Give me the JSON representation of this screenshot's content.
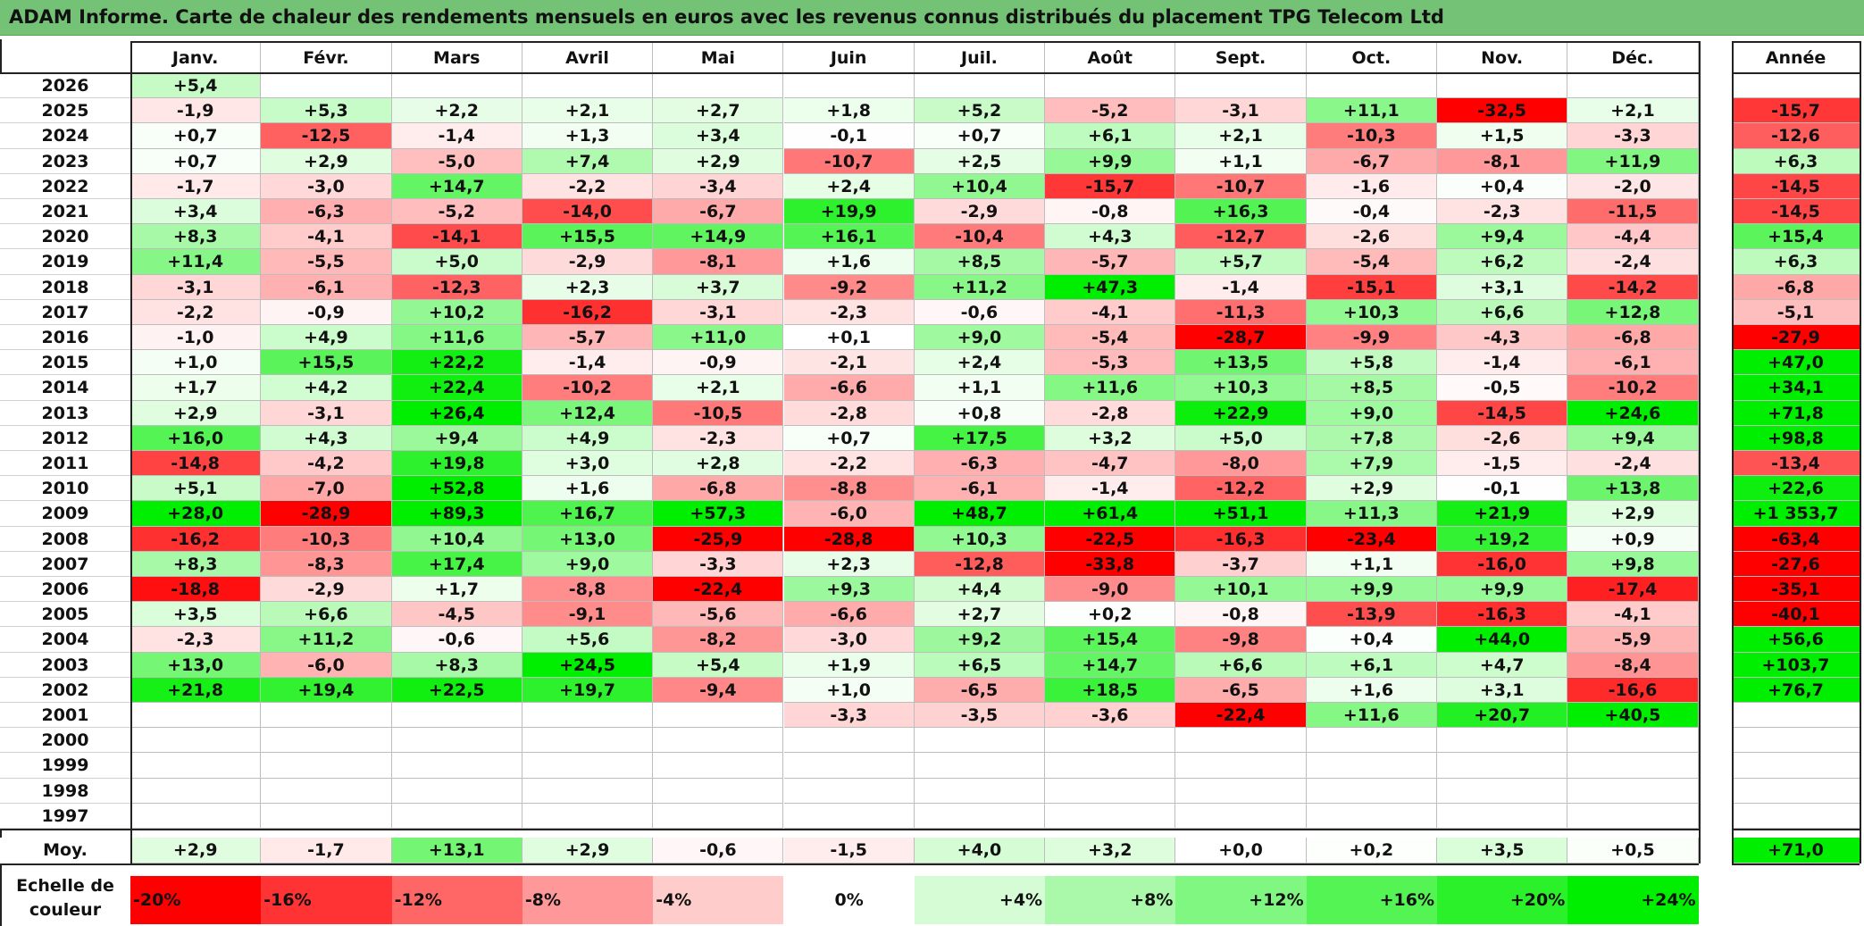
{
  "title": "ADAM Informe. Carte de chaleur des rendements mensuels en euros avec les revenus connus distribués du placement TPG Telecom Ltd",
  "chart_data": {
    "type": "heatmap",
    "title": "ADAM Informe. Carte de chaleur des rendements mensuels en euros avec les revenus connus distribués du placement TPG Telecom Ltd",
    "months": [
      "Janv.",
      "Févr.",
      "Mars",
      "Avril",
      "Mai",
      "Juin",
      "Juil.",
      "Août",
      "Sept.",
      "Oct.",
      "Nov.",
      "Déc."
    ],
    "year_header": "Année",
    "rows": [
      {
        "year": "2026",
        "values": [
          "+5,4",
          "",
          "",
          "",
          "",
          "",
          "",
          "",
          "",
          "",
          "",
          ""
        ],
        "annual": ""
      },
      {
        "year": "2025",
        "values": [
          "-1,9",
          "+5,3",
          "+2,2",
          "+2,1",
          "+2,7",
          "+1,8",
          "+5,2",
          "-5,2",
          "-3,1",
          "+11,1",
          "-32,5",
          "+2,1"
        ],
        "annual": "-15,7"
      },
      {
        "year": "2024",
        "values": [
          "+0,7",
          "-12,5",
          "-1,4",
          "+1,3",
          "+3,4",
          "-0,1",
          "+0,7",
          "+6,1",
          "+2,1",
          "-10,3",
          "+1,5",
          "-3,3"
        ],
        "annual": "-12,6"
      },
      {
        "year": "2023",
        "values": [
          "+0,7",
          "+2,9",
          "-5,0",
          "+7,4",
          "+2,9",
          "-10,7",
          "+2,5",
          "+9,9",
          "+1,1",
          "-6,7",
          "-8,1",
          "+11,9"
        ],
        "annual": "+6,3"
      },
      {
        "year": "2022",
        "values": [
          "-1,7",
          "-3,0",
          "+14,7",
          "-2,2",
          "-3,4",
          "+2,4",
          "+10,4",
          "-15,7",
          "-10,7",
          "-1,6",
          "+0,4",
          "-2,0"
        ],
        "annual": "-14,5"
      },
      {
        "year": "2021",
        "values": [
          "+3,4",
          "-6,3",
          "-5,2",
          "-14,0",
          "-6,7",
          "+19,9",
          "-2,9",
          "-0,8",
          "+16,3",
          "-0,4",
          "-2,3",
          "-11,5"
        ],
        "annual": "-14,5"
      },
      {
        "year": "2020",
        "values": [
          "+8,3",
          "-4,1",
          "-14,1",
          "+15,5",
          "+14,9",
          "+16,1",
          "-10,4",
          "+4,3",
          "-12,7",
          "-2,6",
          "+9,4",
          "-4,4"
        ],
        "annual": "+15,4"
      },
      {
        "year": "2019",
        "values": [
          "+11,4",
          "-5,5",
          "+5,0",
          "-2,9",
          "-8,1",
          "+1,6",
          "+8,5",
          "-5,7",
          "+5,7",
          "-5,4",
          "+6,2",
          "-2,4"
        ],
        "annual": "+6,3"
      },
      {
        "year": "2018",
        "values": [
          "-3,1",
          "-6,1",
          "-12,3",
          "+2,3",
          "+3,7",
          "-9,2",
          "+11,2",
          "+47,3",
          "-1,4",
          "-15,1",
          "+3,1",
          "-14,2"
        ],
        "annual": "-6,8"
      },
      {
        "year": "2017",
        "values": [
          "-2,2",
          "-0,9",
          "+10,2",
          "-16,2",
          "-3,1",
          "-2,3",
          "-0,6",
          "-4,1",
          "-11,3",
          "+10,3",
          "+6,6",
          "+12,8"
        ],
        "annual": "-5,1"
      },
      {
        "year": "2016",
        "values": [
          "-1,0",
          "+4,9",
          "+11,6",
          "-5,7",
          "+11,0",
          "+0,1",
          "+9,0",
          "-5,4",
          "-28,7",
          "-9,9",
          "-4,3",
          "-6,8"
        ],
        "annual": "-27,9"
      },
      {
        "year": "2015",
        "values": [
          "+1,0",
          "+15,5",
          "+22,2",
          "-1,4",
          "-0,9",
          "-2,1",
          "+2,4",
          "-5,3",
          "+13,5",
          "+5,8",
          "-1,4",
          "-6,1"
        ],
        "annual": "+47,0"
      },
      {
        "year": "2014",
        "values": [
          "+1,7",
          "+4,2",
          "+22,4",
          "-10,2",
          "+2,1",
          "-6,6",
          "+1,1",
          "+11,6",
          "+10,3",
          "+8,5",
          "-0,5",
          "-10,2"
        ],
        "annual": "+34,1"
      },
      {
        "year": "2013",
        "values": [
          "+2,9",
          "-3,1",
          "+26,4",
          "+12,4",
          "-10,5",
          "-2,8",
          "+0,8",
          "-2,8",
          "+22,9",
          "+9,0",
          "-14,5",
          "+24,6"
        ],
        "annual": "+71,8"
      },
      {
        "year": "2012",
        "values": [
          "+16,0",
          "+4,3",
          "+9,4",
          "+4,9",
          "-2,3",
          "+0,7",
          "+17,5",
          "+3,2",
          "+5,0",
          "+7,8",
          "-2,6",
          "+9,4"
        ],
        "annual": "+98,8"
      },
      {
        "year": "2011",
        "values": [
          "-14,8",
          "-4,2",
          "+19,8",
          "+3,0",
          "+2,8",
          "-2,2",
          "-6,3",
          "-4,7",
          "-8,0",
          "+7,9",
          "-1,5",
          "-2,4"
        ],
        "annual": "-13,4"
      },
      {
        "year": "2010",
        "values": [
          "+5,1",
          "-7,0",
          "+52,8",
          "+1,6",
          "-6,8",
          "-8,8",
          "-6,1",
          "-1,4",
          "-12,2",
          "+2,9",
          "-0,1",
          "+13,8"
        ],
        "annual": "+22,6"
      },
      {
        "year": "2009",
        "values": [
          "+28,0",
          "-28,9",
          "+89,3",
          "+16,7",
          "+57,3",
          "-6,0",
          "+48,7",
          "+61,4",
          "+51,1",
          "+11,3",
          "+21,9",
          "+2,9"
        ],
        "annual": "+1 353,7"
      },
      {
        "year": "2008",
        "values": [
          "-16,2",
          "-10,3",
          "+10,4",
          "+13,0",
          "-25,9",
          "-28,8",
          "+10,3",
          "-22,5",
          "-16,3",
          "-23,4",
          "+19,2",
          "+0,9"
        ],
        "annual": "-63,4"
      },
      {
        "year": "2007",
        "values": [
          "+8,3",
          "-8,3",
          "+17,4",
          "+9,0",
          "-3,3",
          "+2,3",
          "-12,8",
          "-33,8",
          "-3,7",
          "+1,1",
          "-16,0",
          "+9,8"
        ],
        "annual": "-27,6"
      },
      {
        "year": "2006",
        "values": [
          "-18,8",
          "-2,9",
          "+1,7",
          "-8,8",
          "-22,4",
          "+9,3",
          "+4,4",
          "-9,0",
          "+10,1",
          "+9,9",
          "+9,9",
          "-17,4"
        ],
        "annual": "-35,1"
      },
      {
        "year": "2005",
        "values": [
          "+3,5",
          "+6,6",
          "-4,5",
          "-9,1",
          "-5,6",
          "-6,6",
          "+2,7",
          "+0,2",
          "-0,8",
          "-13,9",
          "-16,3",
          "-4,1"
        ],
        "annual": "-40,1"
      },
      {
        "year": "2004",
        "values": [
          "-2,3",
          "+11,2",
          "-0,6",
          "+5,6",
          "-8,2",
          "-3,0",
          "+9,2",
          "+15,4",
          "-9,8",
          "+0,4",
          "+44,0",
          "-5,9"
        ],
        "annual": "+56,6"
      },
      {
        "year": "2003",
        "values": [
          "+13,0",
          "-6,0",
          "+8,3",
          "+24,5",
          "+5,4",
          "+1,9",
          "+6,5",
          "+14,7",
          "+6,6",
          "+6,1",
          "+4,7",
          "-8,4"
        ],
        "annual": "+103,7"
      },
      {
        "year": "2002",
        "values": [
          "+21,8",
          "+19,4",
          "+22,5",
          "+19,7",
          "-9,4",
          "+1,0",
          "-6,5",
          "+18,5",
          "-6,5",
          "+1,6",
          "+3,1",
          "-16,6"
        ],
        "annual": "+76,7"
      },
      {
        "year": "2001",
        "values": [
          "",
          "",
          "",
          "",
          "",
          "-3,3",
          "-3,5",
          "-3,6",
          "-22,4",
          "+11,6",
          "+20,7",
          "+40,5"
        ],
        "annual": ""
      },
      {
        "year": "2000",
        "values": [
          "",
          "",
          "",
          "",
          "",
          "",
          "",
          "",
          "",
          "",
          "",
          ""
        ],
        "annual": ""
      },
      {
        "year": "1999",
        "values": [
          "",
          "",
          "",
          "",
          "",
          "",
          "",
          "",
          "",
          "",
          "",
          ""
        ],
        "annual": ""
      },
      {
        "year": "1998",
        "values": [
          "",
          "",
          "",
          "",
          "",
          "",
          "",
          "",
          "",
          "",
          "",
          ""
        ],
        "annual": ""
      },
      {
        "year": "1997",
        "values": [
          "",
          "",
          "",
          "",
          "",
          "",
          "",
          "",
          "",
          "",
          "",
          ""
        ],
        "annual": ""
      }
    ],
    "average": {
      "label": "Moy.",
      "values": [
        "+2,9",
        "-1,7",
        "+13,1",
        "+2,9",
        "-0,6",
        "-1,5",
        "+4,0",
        "+3,2",
        "+0,0",
        "+0,2",
        "+3,5",
        "+0,5"
      ],
      "annual": "+71,0"
    },
    "scale": {
      "label_line1": "Echelle de",
      "label_line2": "couleur",
      "steps": [
        "-20%",
        "-16%",
        "-12%",
        "-8%",
        "-4%",
        "0%",
        "+4%",
        "+8%",
        "+12%",
        "+16%",
        "+20%",
        "+24%"
      ]
    },
    "colors": {
      "title_bar": "#74c275",
      "strong_negative": "#ff0000",
      "neutral": "#ffffff",
      "strong_positive": "#00ee00"
    }
  }
}
